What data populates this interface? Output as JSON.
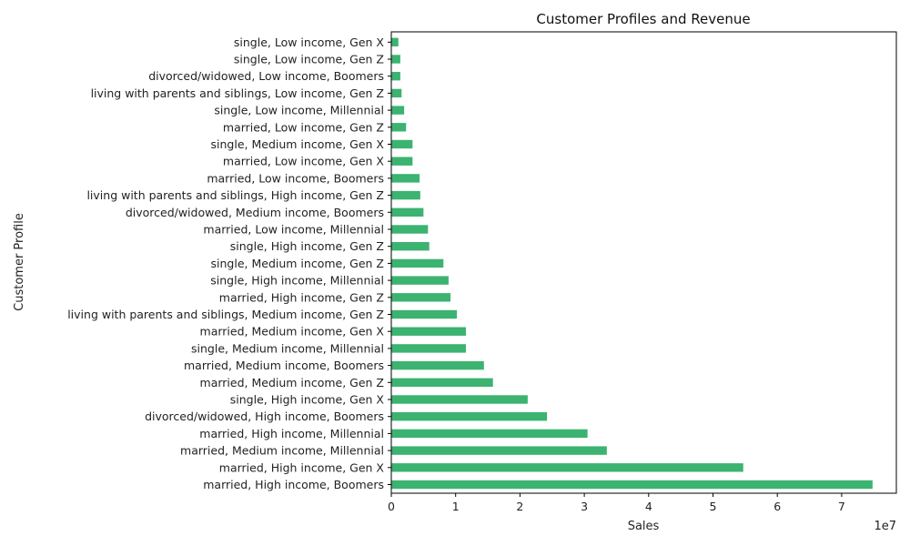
{
  "chart_data": {
    "type": "bar",
    "orientation": "horizontal",
    "title": "Customer Profiles and Revenue",
    "xlabel": "Sales",
    "ylabel": "Customer Profile",
    "x_scale_label": "1e7",
    "xlim": [
      0,
      78500000
    ],
    "x_ticks": [
      0,
      10000000,
      20000000,
      30000000,
      40000000,
      50000000,
      60000000,
      70000000
    ],
    "x_tick_labels": [
      "0",
      "1",
      "2",
      "3",
      "4",
      "5",
      "6",
      "7"
    ],
    "bar_color": "#3cb371",
    "grid": false,
    "categories": [
      "married, High income, Boomers",
      "married, High income, Gen X",
      "married, Medium income, Millennial",
      "married, High income, Millennial",
      "divorced/widowed, High income, Boomers",
      "single, High income, Gen X",
      "married, Medium income, Gen Z",
      "married, Medium income, Boomers",
      "single, Medium income, Millennial",
      "married, Medium income, Gen X",
      "living with parents and siblings, Medium income, Gen Z",
      "married, High income, Gen Z",
      "single, High income, Millennial",
      "single, Medium income, Gen Z",
      "single, High income, Gen Z",
      "married, Low income, Millennial",
      "divorced/widowed, Medium income, Boomers",
      "living with parents and siblings, High income, Gen Z",
      "married, Low income, Boomers",
      "married, Low income, Gen X",
      "single, Medium income, Gen X",
      "married, Low income, Gen Z",
      "single, Low income, Millennial",
      "living with parents and siblings, Low income, Gen Z",
      "divorced/widowed, Low income, Boomers",
      "single, Low income, Gen Z",
      "single, Low income, Gen X"
    ],
    "values": [
      74800000,
      54700000,
      33500000,
      30500000,
      24200000,
      21200000,
      15800000,
      14400000,
      11600000,
      11600000,
      10200000,
      9200000,
      8900000,
      8100000,
      5900000,
      5700000,
      5000000,
      4500000,
      4400000,
      3300000,
      3300000,
      2300000,
      2000000,
      1600000,
      1400000,
      1400000,
      1100000
    ]
  }
}
